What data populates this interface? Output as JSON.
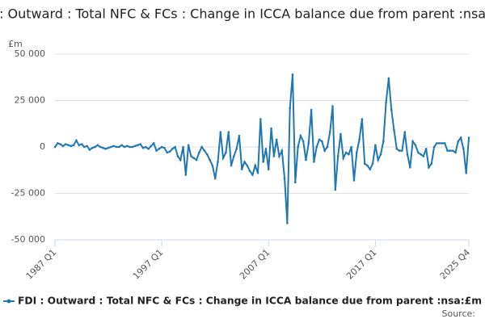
{
  "chart_data": {
    "type": "line",
    "title": "FDI : Outward : Total NFC & FCs : Change in ICCA balance due from parent :nsa:£m",
    "y_unit": "£m",
    "source": "Source:",
    "categories": [
      "1987 Q1",
      null,
      null,
      null,
      null,
      null,
      null,
      null,
      null,
      null,
      null,
      null,
      null,
      null,
      null,
      null,
      null,
      null,
      null,
      null,
      null,
      null,
      null,
      null,
      null,
      null,
      null,
      null,
      null,
      null,
      null,
      null,
      null,
      null,
      null,
      null,
      null,
      null,
      null,
      null,
      "1997 Q1",
      null,
      null,
      null,
      null,
      null,
      null,
      null,
      null,
      null,
      null,
      null,
      null,
      null,
      null,
      null,
      null,
      null,
      null,
      null,
      null,
      null,
      null,
      null,
      null,
      null,
      null,
      null,
      null,
      null,
      null,
      null,
      null,
      null,
      null,
      null,
      null,
      null,
      null,
      null,
      "2007 Q1",
      null,
      null,
      null,
      null,
      null,
      null,
      null,
      null,
      null,
      null,
      null,
      null,
      null,
      null,
      null,
      null,
      null,
      null,
      null,
      null,
      null,
      null,
      null,
      null,
      null,
      null,
      null,
      null,
      null,
      null,
      null,
      null,
      null,
      null,
      null,
      null,
      null,
      null,
      null,
      "2017 Q1",
      null,
      null,
      null,
      null,
      null,
      null,
      null,
      null,
      null,
      null,
      null,
      null,
      null,
      null,
      null,
      null,
      null,
      null,
      null,
      null,
      null,
      null,
      null,
      null,
      null,
      null,
      null,
      null,
      null,
      null,
      null,
      null,
      null,
      null,
      "2025 Q4"
    ],
    "series": [
      {
        "name": "FDI : Outward : Total NFC & FCs : Change in ICCA balance due from parent :nsa:£m",
        "color": "#1f78b4",
        "values": [
          0,
          2000,
          1500,
          500,
          1500,
          1000,
          500,
          1000,
          3500,
          1000,
          1500,
          0,
          500,
          -1500,
          -500,
          0,
          1000,
          0,
          -500,
          -1000,
          -500,
          0,
          500,
          0,
          0,
          1000,
          0,
          500,
          0,
          0,
          500,
          1000,
          1500,
          -500,
          0,
          -1000,
          500,
          2000,
          -2000,
          -1000,
          0,
          -500,
          -3000,
          -2500,
          -1000,
          0,
          -5000,
          -7000,
          0,
          -15000,
          1000,
          -5000,
          -6000,
          -7000,
          -3000,
          0,
          -2000,
          -4000,
          -7000,
          -10000,
          -17000,
          -8000,
          8000,
          -6000,
          -3000,
          8000,
          -10000,
          -5000,
          -1000,
          6000,
          -12000,
          -8000,
          -10000,
          -13000,
          -15000,
          -10000,
          -14000,
          15000,
          -8000,
          -1000,
          -12000,
          10000,
          -5000,
          4000,
          -5000,
          -2000,
          -17000,
          -41000,
          21000,
          39000,
          -19000,
          0,
          6000,
          3000,
          -7000,
          2000,
          20000,
          -8000,
          0,
          4000,
          3000,
          -2000,
          0,
          8000,
          22000,
          -23000,
          -5000,
          7000,
          -6000,
          -3000,
          -4000,
          0,
          -18000,
          -3000,
          4000,
          15000,
          -9000,
          -10000,
          -12000,
          -9000,
          1000,
          -7000,
          -4000,
          3000,
          24000,
          37000,
          20000,
          9000,
          -1000,
          -2000,
          -2000,
          8000,
          -4000,
          -11000,
          3000,
          1000,
          -3000,
          -4000,
          -5000,
          -1000,
          -11000,
          -9000,
          0,
          2000,
          2000,
          2000,
          2000,
          -2000,
          -2000,
          -2000,
          -3000,
          3000,
          5000,
          -1000,
          -14000,
          5000
        ]
      }
    ],
    "ylim": [
      -50000,
      50000
    ],
    "yticks": [
      {
        "value": -50000,
        "label": "-50 000"
      },
      {
        "value": -25000,
        "label": "-25 000"
      },
      0,
      {
        "value": 25000,
        "label": "25 000"
      },
      {
        "value": 50000,
        "label": "50 000"
      }
    ],
    "grid": true,
    "legend": "bottom"
  }
}
